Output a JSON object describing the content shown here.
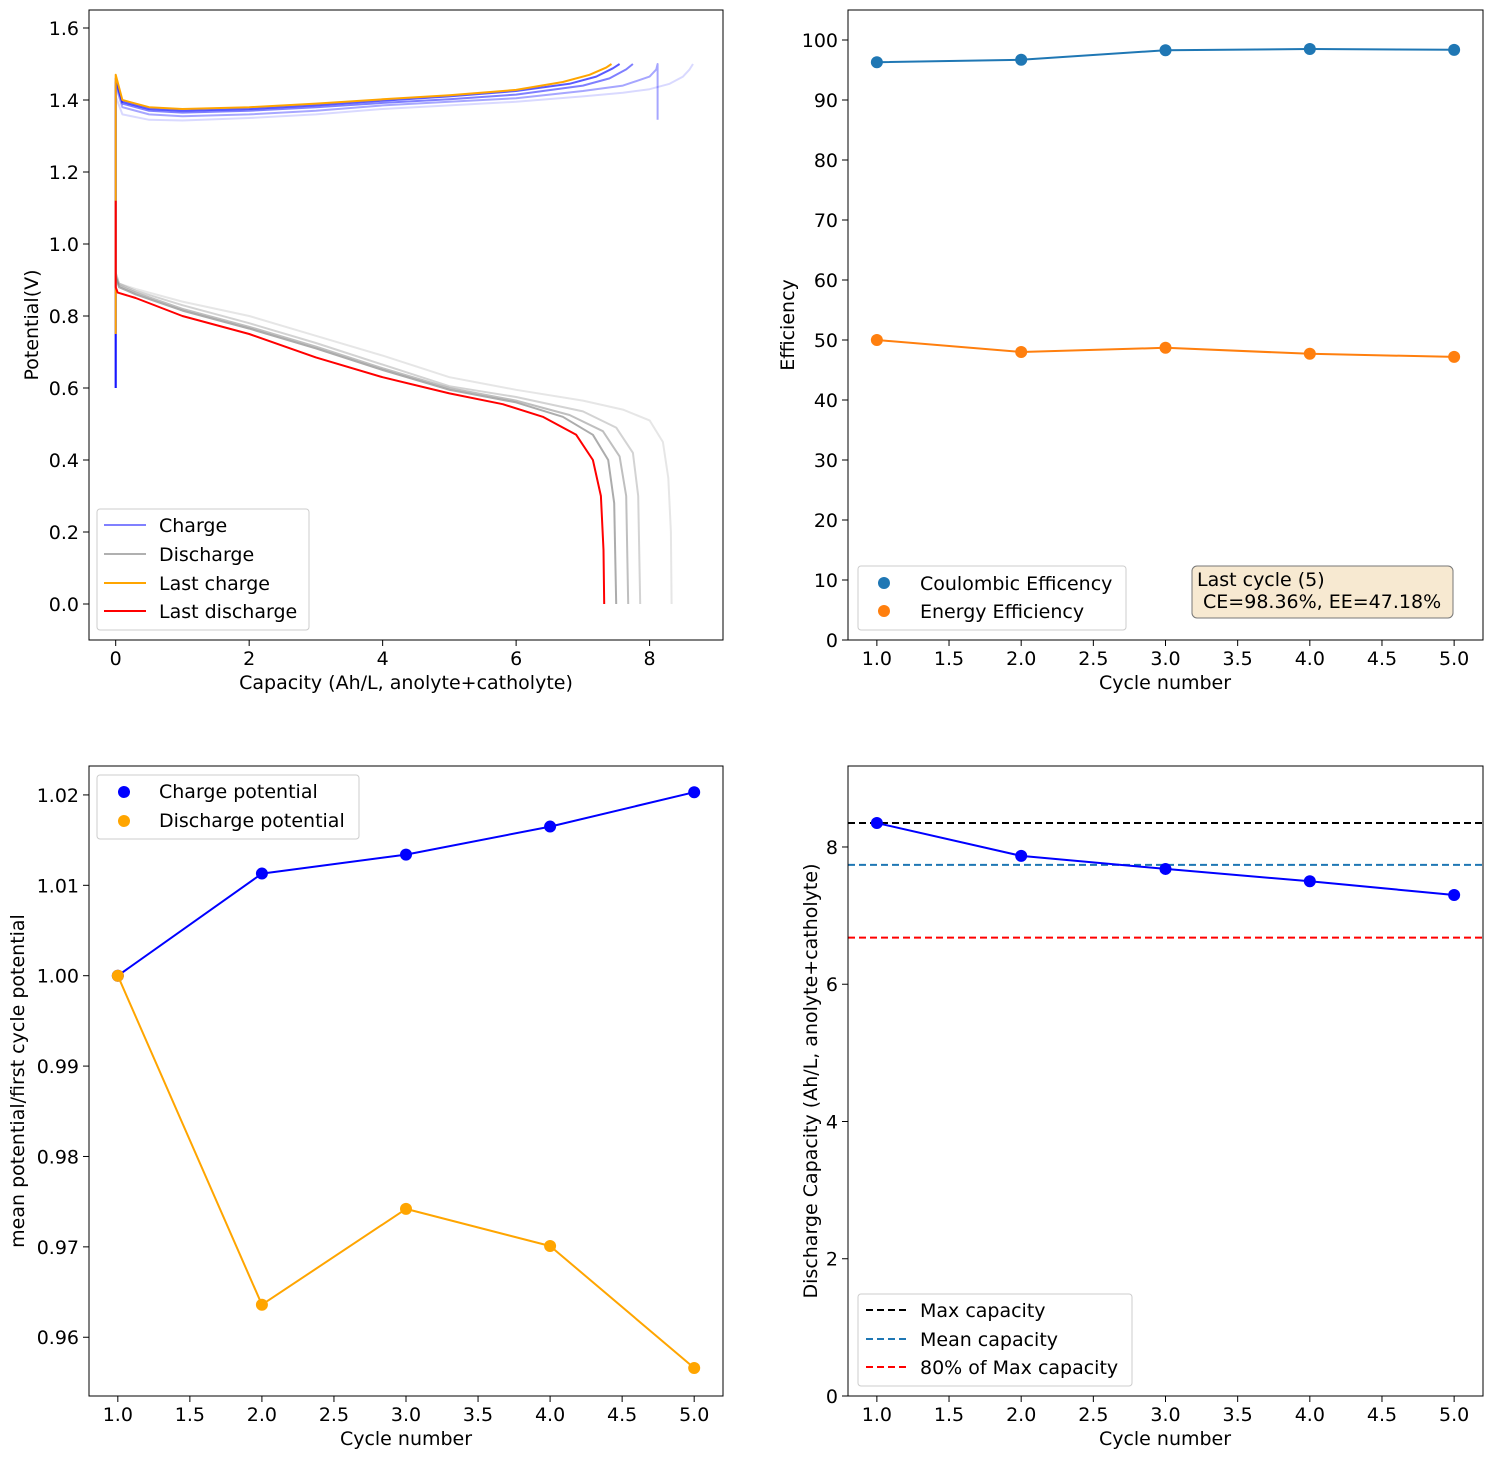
{
  "chart_data": [
    {
      "id": "p1",
      "type": "line",
      "title": "",
      "xlabel": "Capacity (Ah/L, anolyte+catholyte)",
      "ylabel": "Potential(V)",
      "xlim": [
        -0.4,
        9.1
      ],
      "ylim": [
        -0.1,
        1.65
      ],
      "xticks": [
        0,
        2,
        4,
        6,
        8
      ],
      "yticks": [
        0.0,
        0.2,
        0.4,
        0.6,
        0.8,
        1.0,
        1.2,
        1.4,
        1.6
      ],
      "legend": {
        "position": "lower-left",
        "entries": [
          {
            "label": "Charge",
            "color": "#8080ff"
          },
          {
            "label": "Discharge",
            "color": "#b0b0b0"
          },
          {
            "label": "Last charge",
            "color": "#ffa500"
          },
          {
            "label": "Last discharge",
            "color": "#ff0000"
          }
        ]
      },
      "series": [
        {
          "name": "Charge cycle 1",
          "color": "#0000ff",
          "opacity": 0.15,
          "x": [
            0.0,
            0.0,
            0.1,
            0.5,
            1.0,
            2.0,
            3.0,
            4.0,
            5.0,
            6.0,
            7.0,
            7.6,
            8.0,
            8.3,
            8.5,
            8.6,
            8.65
          ],
          "y": [
            0.6,
            1.41,
            1.36,
            1.345,
            1.343,
            1.35,
            1.36,
            1.375,
            1.385,
            1.395,
            1.41,
            1.42,
            1.43,
            1.445,
            1.465,
            1.485,
            1.5
          ]
        },
        {
          "name": "Charge cycle 2",
          "color": "#0000ff",
          "opacity": 0.35,
          "x": [
            0.0,
            0.0,
            0.1,
            0.5,
            1.0,
            2.0,
            3.0,
            4.0,
            5.0,
            6.0,
            7.0,
            7.6,
            8.0,
            8.1,
            8.12,
            8.12,
            8.12
          ],
          "y": [
            0.6,
            1.44,
            1.38,
            1.36,
            1.355,
            1.36,
            1.37,
            1.385,
            1.395,
            1.405,
            1.425,
            1.44,
            1.465,
            1.485,
            1.5,
            1.42,
            1.345
          ]
        },
        {
          "name": "Charge cycle 3",
          "color": "#0000ff",
          "opacity": 0.5,
          "x": [
            0.0,
            0.0,
            0.1,
            0.5,
            1.0,
            2.0,
            3.0,
            4.0,
            5.0,
            6.0,
            7.0,
            7.4,
            7.65,
            7.75
          ],
          "y": [
            0.6,
            1.45,
            1.39,
            1.37,
            1.365,
            1.37,
            1.38,
            1.392,
            1.402,
            1.415,
            1.44,
            1.46,
            1.485,
            1.5
          ]
        },
        {
          "name": "Charge cycle 4",
          "color": "#0000ff",
          "opacity": 0.65,
          "x": [
            0.0,
            0.0,
            0.1,
            0.5,
            1.0,
            2.0,
            3.0,
            4.0,
            5.0,
            6.0,
            6.8,
            7.2,
            7.45,
            7.55
          ],
          "y": [
            0.6,
            1.46,
            1.395,
            1.375,
            1.37,
            1.375,
            1.385,
            1.398,
            1.41,
            1.425,
            1.445,
            1.465,
            1.488,
            1.5
          ]
        },
        {
          "name": "Last charge",
          "color": "#ffa500",
          "opacity": 1.0,
          "x": [
            0.0,
            0.0,
            0.1,
            0.5,
            1.0,
            2.0,
            3.0,
            4.0,
            5.0,
            6.0,
            6.7,
            7.1,
            7.35,
            7.43
          ],
          "y": [
            0.75,
            1.47,
            1.4,
            1.38,
            1.375,
            1.38,
            1.39,
            1.402,
            1.413,
            1.428,
            1.45,
            1.47,
            1.49,
            1.5
          ]
        },
        {
          "name": "Discharge cycle 1",
          "color": "#808080",
          "opacity": 0.2,
          "x": [
            0.0,
            0.05,
            0.3,
            1.0,
            2.0,
            3.0,
            4.0,
            5.0,
            6.0,
            7.0,
            7.6,
            8.0,
            8.2,
            8.28,
            8.32,
            8.33
          ],
          "y": [
            0.92,
            0.89,
            0.875,
            0.84,
            0.8,
            0.745,
            0.69,
            0.63,
            0.595,
            0.565,
            0.54,
            0.51,
            0.45,
            0.35,
            0.2,
            0.0
          ]
        },
        {
          "name": "Discharge cycle 2",
          "color": "#808080",
          "opacity": 0.35,
          "x": [
            0.0,
            0.05,
            0.3,
            1.0,
            2.0,
            3.0,
            4.0,
            5.0,
            6.0,
            7.0,
            7.5,
            7.75,
            7.83,
            7.86
          ],
          "y": [
            0.92,
            0.89,
            0.87,
            0.83,
            0.78,
            0.725,
            0.665,
            0.605,
            0.575,
            0.535,
            0.49,
            0.42,
            0.3,
            0.0
          ]
        },
        {
          "name": "Discharge cycle 3",
          "color": "#808080",
          "opacity": 0.5,
          "x": [
            0.0,
            0.05,
            0.3,
            1.0,
            2.0,
            3.0,
            4.0,
            5.0,
            6.0,
            6.8,
            7.3,
            7.55,
            7.65,
            7.68
          ],
          "y": [
            0.91,
            0.885,
            0.865,
            0.82,
            0.77,
            0.715,
            0.655,
            0.6,
            0.565,
            0.525,
            0.48,
            0.41,
            0.3,
            0.0
          ]
        },
        {
          "name": "Discharge cycle 4",
          "color": "#808080",
          "opacity": 0.65,
          "x": [
            0.0,
            0.05,
            0.3,
            1.0,
            2.0,
            3.0,
            4.0,
            5.0,
            6.0,
            6.7,
            7.15,
            7.38,
            7.47,
            7.5
          ],
          "y": [
            0.91,
            0.88,
            0.86,
            0.815,
            0.765,
            0.71,
            0.65,
            0.595,
            0.56,
            0.52,
            0.47,
            0.4,
            0.28,
            0.0
          ]
        },
        {
          "name": "Last discharge",
          "color": "#ff0000",
          "opacity": 1.0,
          "x": [
            0.0,
            0.0,
            0.03,
            0.3,
            1.0,
            2.0,
            3.0,
            4.0,
            5.0,
            5.8,
            6.4,
            6.9,
            7.15,
            7.27,
            7.31,
            7.32
          ],
          "y": [
            1.12,
            0.88,
            0.865,
            0.85,
            0.8,
            0.75,
            0.685,
            0.63,
            0.585,
            0.555,
            0.52,
            0.47,
            0.4,
            0.3,
            0.15,
            0.0
          ]
        }
      ]
    },
    {
      "id": "p2",
      "type": "line",
      "title": "",
      "xlabel": "Cycle number",
      "ylabel": "Efficiency",
      "xlim": [
        0.8,
        5.2
      ],
      "ylim": [
        0,
        105
      ],
      "xticks": [
        1.0,
        1.5,
        2.0,
        2.5,
        3.0,
        3.5,
        4.0,
        4.5,
        5.0
      ],
      "yticks": [
        0,
        10,
        20,
        30,
        40,
        50,
        60,
        70,
        80,
        90,
        100
      ],
      "legend": {
        "position": "lower-left",
        "entries": [
          {
            "label": "Coulombic Efficency",
            "color": "#1f77b4"
          },
          {
            "label": "Energy Efficiency",
            "color": "#ff7f0e"
          }
        ]
      },
      "series": [
        {
          "name": "Coulombic Efficency",
          "color": "#1f77b4",
          "x": [
            1,
            2,
            3,
            4,
            5
          ],
          "y": [
            96.3,
            96.7,
            98.3,
            98.5,
            98.36
          ]
        },
        {
          "name": "Energy Efficiency",
          "color": "#ff7f0e",
          "x": [
            1,
            2,
            3,
            4,
            5
          ],
          "y": [
            50.0,
            48.0,
            48.7,
            47.7,
            47.18
          ]
        }
      ],
      "annotation": {
        "line1": "Last cycle (5)",
        "line2": " CE=98.36%, EE=47.18%"
      }
    },
    {
      "id": "p3",
      "type": "line",
      "title": "",
      "xlabel": "Cycle number",
      "ylabel": "mean potential/first cycle potential",
      "xlim": [
        0.8,
        5.2
      ],
      "ylim": [
        0.9535,
        1.0232
      ],
      "xticks": [
        1.0,
        1.5,
        2.0,
        2.5,
        3.0,
        3.5,
        4.0,
        4.5,
        5.0
      ],
      "yticks": [
        0.96,
        0.97,
        0.98,
        0.99,
        1.0,
        1.01,
        1.02
      ],
      "legend": {
        "position": "upper-left",
        "entries": [
          {
            "label": "Charge potential",
            "color": "#0000ff"
          },
          {
            "label": "Discharge potential",
            "color": "#ffa500"
          }
        ]
      },
      "series": [
        {
          "name": "Charge potential",
          "color": "#0000ff",
          "x": [
            1,
            2,
            3,
            4,
            5
          ],
          "y": [
            1.0,
            1.0113,
            1.0134,
            1.0165,
            1.0203
          ]
        },
        {
          "name": "Discharge potential",
          "color": "#ffa500",
          "x": [
            1,
            2,
            3,
            4,
            5
          ],
          "y": [
            1.0,
            0.9636,
            0.9742,
            0.9701,
            0.9566
          ]
        }
      ]
    },
    {
      "id": "p4",
      "type": "line",
      "title": "",
      "xlabel": "Cycle number",
      "ylabel": "Discharge Capacity (Ah/L, anolyte+catholyte)",
      "xlim": [
        0.8,
        5.2
      ],
      "ylim": [
        0,
        9.18
      ],
      "xticks": [
        1.0,
        1.5,
        2.0,
        2.5,
        3.0,
        3.5,
        4.0,
        4.5,
        5.0
      ],
      "yticks": [
        0,
        2,
        4,
        6,
        8
      ],
      "legend": {
        "position": "lower-left",
        "entries": [
          {
            "label": "Max capacity",
            "color": "#000000"
          },
          {
            "label": "Mean capacity",
            "color": "#1f77b4"
          },
          {
            "label": "80% of Max capacity",
            "color": "#ff0000"
          }
        ]
      },
      "series": [
        {
          "name": "Discharge capacity",
          "color": "#0000ff",
          "x": [
            1,
            2,
            3,
            4,
            5
          ],
          "y": [
            8.35,
            7.87,
            7.68,
            7.5,
            7.3
          ]
        }
      ],
      "hlines": [
        {
          "name": "Max capacity",
          "y": 8.35,
          "color": "#000000"
        },
        {
          "name": "Mean capacity",
          "y": 7.74,
          "color": "#1f77b4"
        },
        {
          "name": "80% of Max capacity",
          "y": 6.68,
          "color": "#ff0000"
        }
      ]
    }
  ]
}
